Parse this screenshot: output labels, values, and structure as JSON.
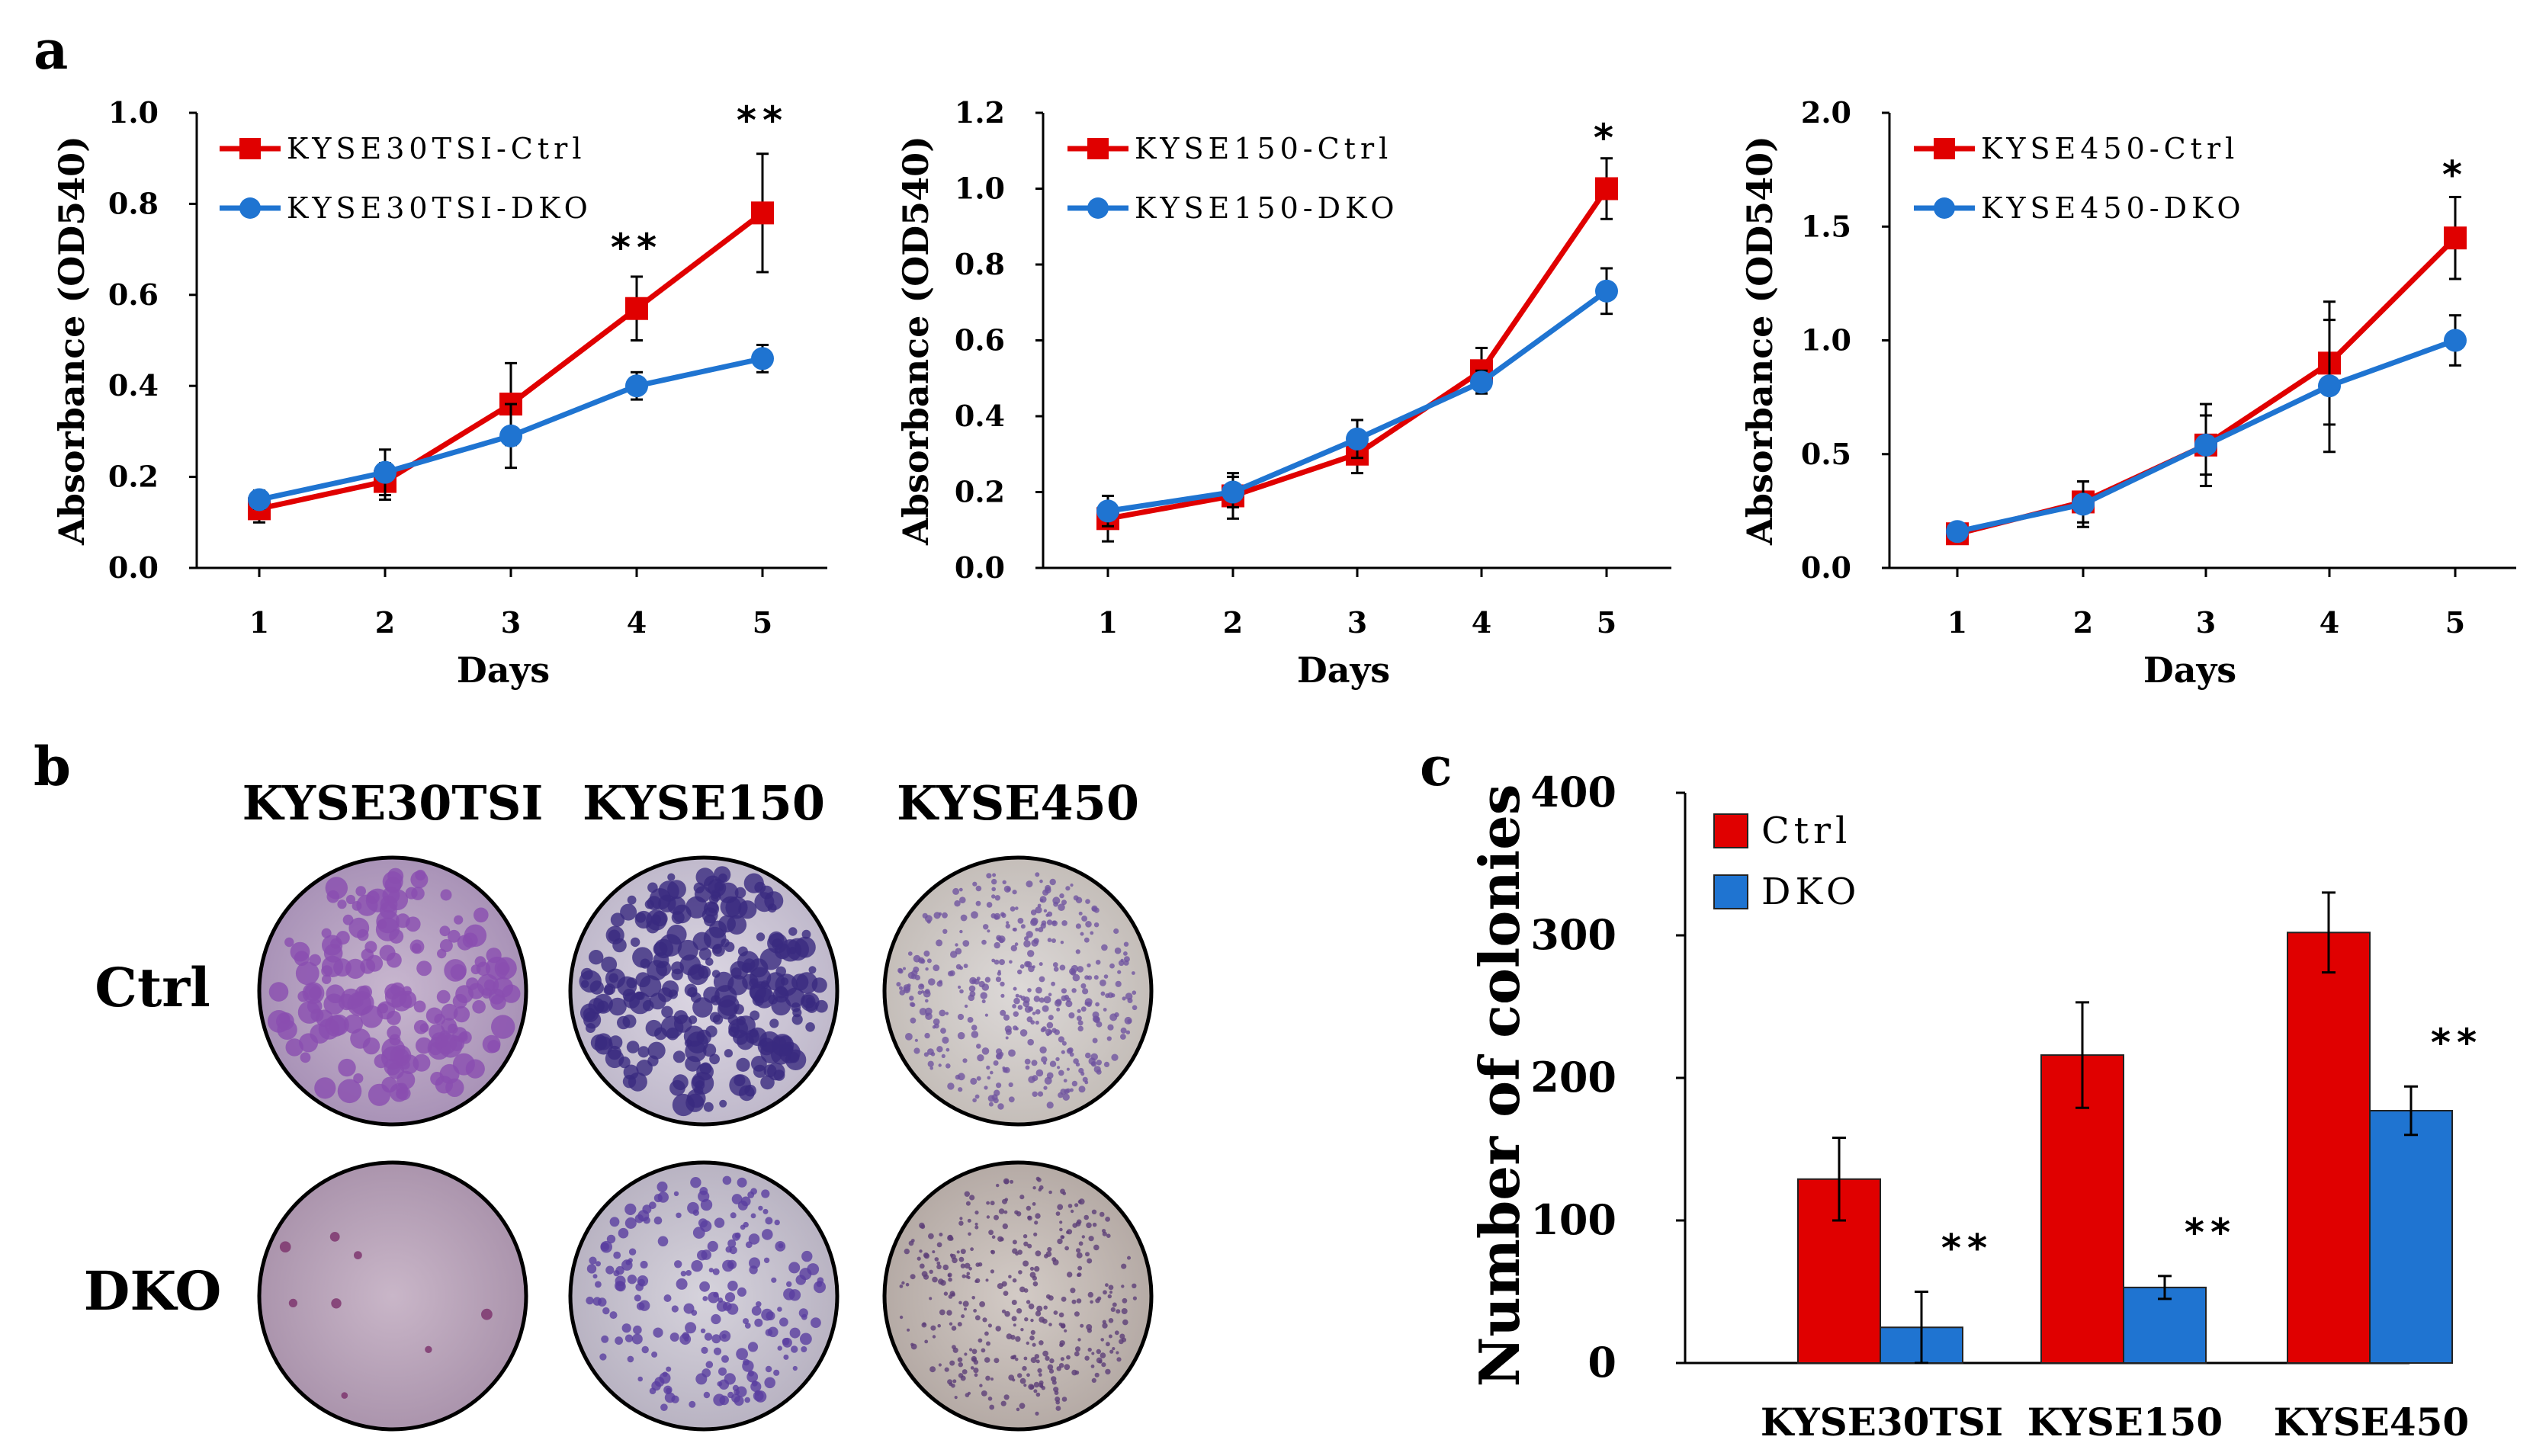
{
  "panels": {
    "a": "a",
    "b": "b",
    "c": "c"
  },
  "colors": {
    "ctrl": "#e00000",
    "dko": "#1f74d1",
    "axis": "#000000"
  },
  "chart_data": [
    {
      "type": "line",
      "panel": "a",
      "ylabel": "Absorbance (OD540)",
      "xlabel": "Days",
      "x": [
        1,
        2,
        3,
        4,
        5
      ],
      "ylim": [
        0,
        1.0
      ],
      "yticks": [
        "0.0",
        "0.2",
        "0.4",
        "0.6",
        "0.8",
        "1.0"
      ],
      "yticks_values": [
        0,
        0.2,
        0.4,
        0.6,
        0.8,
        1.0
      ],
      "legend_position": "top-left",
      "series": [
        {
          "name": "KYSE30TSI-Ctrl",
          "marker": "square",
          "values": [
            0.13,
            0.19,
            0.36,
            0.57,
            0.78
          ],
          "errors": [
            0.03,
            0.04,
            0.09,
            0.07,
            0.13
          ]
        },
        {
          "name": "KYSE30TSI-DKO",
          "marker": "circle",
          "values": [
            0.15,
            0.21,
            0.29,
            0.4,
            0.46
          ],
          "errors": [
            0.02,
            0.05,
            0.07,
            0.03,
            0.03
          ]
        }
      ],
      "annotations": [
        {
          "x": 4,
          "y": 0.7,
          "text": "**"
        },
        {
          "x": 5,
          "y": 0.98,
          "text": "**"
        }
      ]
    },
    {
      "type": "line",
      "panel": "a",
      "ylabel": "Absorbance (OD540)",
      "xlabel": "Days",
      "x": [
        1,
        2,
        3,
        4,
        5
      ],
      "ylim": [
        0,
        1.2
      ],
      "yticks": [
        "0.0",
        "0.2",
        "0.4",
        "0.6",
        "0.8",
        "1.0",
        "1.2"
      ],
      "yticks_values": [
        0,
        0.2,
        0.4,
        0.6,
        0.8,
        1.0,
        1.2
      ],
      "legend_position": "top-left",
      "series": [
        {
          "name": "KYSE150-Ctrl",
          "marker": "square",
          "values": [
            0.13,
            0.19,
            0.3,
            0.52,
            1.0
          ],
          "errors": [
            0.06,
            0.06,
            0.05,
            0.06,
            0.08
          ]
        },
        {
          "name": "KYSE150-DKO",
          "marker": "circle",
          "values": [
            0.15,
            0.2,
            0.34,
            0.49,
            0.73
          ],
          "errors": [
            0.04,
            0.04,
            0.05,
            0.03,
            0.06
          ]
        }
      ],
      "annotations": [
        {
          "x": 5,
          "y": 1.13,
          "text": "*"
        }
      ]
    },
    {
      "type": "line",
      "panel": "a",
      "ylabel": "Absorbance (OD540)",
      "xlabel": "Days",
      "x": [
        1,
        2,
        3,
        4,
        5
      ],
      "ylim": [
        0,
        2.0
      ],
      "yticks": [
        "0.0",
        "0.5",
        "1.0",
        "1.5",
        "2.0"
      ],
      "yticks_values": [
        0,
        0.5,
        1.0,
        1.5,
        2.0
      ],
      "legend_position": "top-left",
      "series": [
        {
          "name": "KYSE450-Ctrl",
          "marker": "square",
          "values": [
            0.15,
            0.29,
            0.54,
            0.9,
            1.45
          ],
          "errors": [
            0.03,
            0.09,
            0.18,
            0.27,
            0.18
          ]
        },
        {
          "name": "KYSE450-DKO",
          "marker": "circle",
          "values": [
            0.16,
            0.28,
            0.54,
            0.8,
            1.0
          ],
          "errors": [
            0.03,
            0.1,
            0.13,
            0.29,
            0.11
          ]
        }
      ],
      "annotations": [
        {
          "x": 5,
          "y": 1.72,
          "text": "*"
        }
      ]
    },
    {
      "type": "bar",
      "panel": "c",
      "ylabel": "Number of colonies",
      "xlabel": "",
      "categories": [
        "KYSE30TSI",
        "KYSE150",
        "KYSE450"
      ],
      "ylim": [
        0,
        400
      ],
      "yticks": [
        "0",
        "100",
        "200",
        "300",
        "400"
      ],
      "yticks_values": [
        0,
        100,
        200,
        300,
        400
      ],
      "legend_position": "top-left",
      "series": [
        {
          "name": "Ctrl",
          "values": [
            129,
            216,
            302
          ],
          "errors": [
            29,
            37,
            28
          ]
        },
        {
          "name": "DKO",
          "values": [
            25,
            53,
            177
          ],
          "errors": [
            25,
            8,
            17
          ]
        }
      ],
      "annotations": [
        {
          "category": 0,
          "series": 1,
          "text": "**"
        },
        {
          "category": 1,
          "series": 1,
          "text": "**"
        },
        {
          "category": 2,
          "series": 1,
          "text": "**"
        }
      ]
    }
  ],
  "panel_b": {
    "columns": [
      "KYSE30TSI",
      "KYSE150",
      "KYSE450"
    ],
    "rows": [
      "Ctrl",
      "DKO"
    ]
  }
}
